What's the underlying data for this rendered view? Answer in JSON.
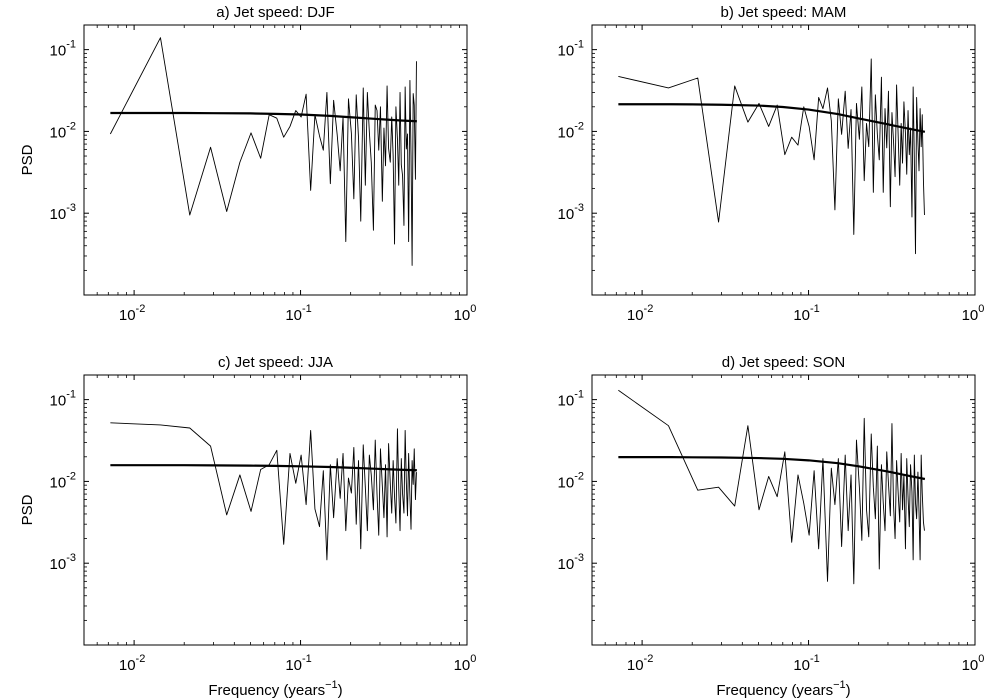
{
  "chart_data": [
    {
      "type": "line",
      "title": "a) Jet speed: DJF",
      "xlabel": "",
      "ylabel": "PSD",
      "xscale": "log",
      "yscale": "log",
      "xlim": [
        0.005,
        1
      ],
      "ylim": [
        0.0001,
        0.2
      ],
      "xticks": [
        {
          "base": "10",
          "exp": "-2",
          "value": 0.01
        },
        {
          "base": "10",
          "exp": "-1",
          "value": 0.1
        },
        {
          "base": "10",
          "exp": "0",
          "value": 1
        }
      ],
      "yticks": [
        {
          "base": "10",
          "exp": "-3",
          "value": 0.001
        },
        {
          "base": "10",
          "exp": "-2",
          "value": 0.01
        },
        {
          "base": "10",
          "exp": "-1",
          "value": 0.1
        }
      ],
      "series": [
        {
          "style": "thin",
          "x": [
            0.0072,
            0.0144,
            0.0216,
            0.0288,
            0.036,
            0.0432,
            0.0504,
            0.0576,
            0.0648,
            0.072,
            0.0792,
            0.0864,
            0.0936,
            0.1008,
            0.108,
            0.115,
            0.122,
            0.13,
            0.137,
            0.144,
            0.151,
            0.158,
            0.166,
            0.173,
            0.18,
            0.187,
            0.194,
            0.202,
            0.209,
            0.216,
            0.223,
            0.23,
            0.238,
            0.245,
            0.252,
            0.259,
            0.266,
            0.274,
            0.281,
            0.288,
            0.295,
            0.302,
            0.31,
            0.317,
            0.324,
            0.331,
            0.338,
            0.346,
            0.353,
            0.36,
            0.367,
            0.374,
            0.382,
            0.389,
            0.396,
            0.403,
            0.41,
            0.418,
            0.425,
            0.432,
            0.439,
            0.446,
            0.454,
            0.461,
            0.468,
            0.475,
            0.482,
            0.49,
            0.497
          ],
          "y": [
            0.0093,
            0.14,
            0.00095,
            0.0064,
            0.00105,
            0.0042,
            0.0096,
            0.0047,
            0.016,
            0.0145,
            0.0085,
            0.0115,
            0.018,
            0.015,
            0.0285,
            0.0019,
            0.016,
            0.0088,
            0.0059,
            0.03,
            0.0023,
            0.024,
            0.0091,
            0.0033,
            0.015,
            0.00045,
            0.025,
            0.0095,
            0.0015,
            0.028,
            0.0083,
            0.0008,
            0.034,
            0.0022,
            0.03,
            0.0098,
            0.0042,
            0.00062,
            0.021,
            0.018,
            0.0059,
            0.02,
            0.0014,
            0.011,
            0.0038,
            0.036,
            0.0062,
            0.0042,
            0.015,
            0.005,
            0.00042,
            0.02,
            0.0081,
            0.0022,
            0.03,
            0.0039,
            0.0029,
            0.00071,
            0.035,
            0.0061,
            0.0093,
            0.00045,
            0.042,
            0.0052,
            0.00023,
            0.029,
            0.021,
            0.0026,
            0.072
          ]
        },
        {
          "style": "thick",
          "x": [
            0.0072,
            0.01,
            0.015,
            0.02,
            0.03,
            0.05,
            0.07,
            0.1,
            0.15,
            0.2,
            0.3,
            0.4,
            0.5
          ],
          "y": [
            0.0168,
            0.0168,
            0.0168,
            0.0168,
            0.0167,
            0.0166,
            0.0164,
            0.0161,
            0.0155,
            0.0149,
            0.0141,
            0.0136,
            0.0133
          ]
        }
      ]
    },
    {
      "type": "line",
      "title": "b) Jet speed: MAM",
      "xlabel": "",
      "ylabel": "",
      "xscale": "log",
      "yscale": "log",
      "xlim": [
        0.005,
        1
      ],
      "ylim": [
        0.0001,
        0.2
      ],
      "xticks": [
        {
          "base": "10",
          "exp": "-2",
          "value": 0.01
        },
        {
          "base": "10",
          "exp": "-1",
          "value": 0.1
        },
        {
          "base": "10",
          "exp": "0",
          "value": 1
        }
      ],
      "yticks": [
        {
          "base": "10",
          "exp": "-3",
          "value": 0.001
        },
        {
          "base": "10",
          "exp": "-2",
          "value": 0.01
        },
        {
          "base": "10",
          "exp": "-1",
          "value": 0.1
        }
      ],
      "series": [
        {
          "style": "thin",
          "x": [
            0.0072,
            0.0144,
            0.0216,
            0.0288,
            0.036,
            0.0432,
            0.0504,
            0.0576,
            0.0648,
            0.072,
            0.0792,
            0.0864,
            0.0936,
            0.1008,
            0.108,
            0.115,
            0.122,
            0.13,
            0.137,
            0.144,
            0.151,
            0.158,
            0.166,
            0.173,
            0.18,
            0.187,
            0.194,
            0.202,
            0.209,
            0.216,
            0.223,
            0.23,
            0.238,
            0.245,
            0.252,
            0.259,
            0.266,
            0.274,
            0.281,
            0.288,
            0.295,
            0.302,
            0.31,
            0.317,
            0.324,
            0.331,
            0.338,
            0.346,
            0.353,
            0.36,
            0.367,
            0.374,
            0.382,
            0.389,
            0.396,
            0.403,
            0.41,
            0.418,
            0.425,
            0.432,
            0.439,
            0.446,
            0.454,
            0.461,
            0.468,
            0.475,
            0.482,
            0.49,
            0.497
          ],
          "y": [
            0.047,
            0.034,
            0.045,
            0.00078,
            0.036,
            0.013,
            0.022,
            0.0115,
            0.021,
            0.0052,
            0.0085,
            0.0068,
            0.02,
            0.0115,
            0.0045,
            0.026,
            0.019,
            0.034,
            0.0135,
            0.0011,
            0.025,
            0.0092,
            0.031,
            0.0062,
            0.0185,
            0.00055,
            0.022,
            0.008,
            0.035,
            0.0025,
            0.0125,
            0.0065,
            0.077,
            0.0018,
            0.028,
            0.0092,
            0.0045,
            0.046,
            0.0018,
            0.019,
            0.0063,
            0.031,
            0.0012,
            0.017,
            0.0075,
            0.0028,
            0.037,
            0.0081,
            0.0022,
            0.0125,
            0.0041,
            0.023,
            0.0095,
            0.003,
            0.018,
            0.0052,
            0.011,
            0.0009,
            0.035,
            0.0045,
            0.00032,
            0.026,
            0.0075,
            0.0033,
            0.019,
            0.0065,
            0.016,
            0.0025,
            0.00095
          ]
        },
        {
          "style": "thick",
          "x": [
            0.0072,
            0.01,
            0.015,
            0.02,
            0.03,
            0.05,
            0.07,
            0.1,
            0.15,
            0.2,
            0.3,
            0.4,
            0.5
          ],
          "y": [
            0.0215,
            0.0215,
            0.0215,
            0.0214,
            0.0212,
            0.0207,
            0.0199,
            0.0185,
            0.0163,
            0.0144,
            0.0122,
            0.0108,
            0.0099
          ]
        }
      ]
    },
    {
      "type": "line",
      "title": "c) Jet speed: JJA",
      "xlabel": "Frequency (years",
      "xlabel_sup": "−1",
      "xlabel_tail": ")",
      "ylabel": "PSD",
      "xscale": "log",
      "yscale": "log",
      "xlim": [
        0.005,
        1
      ],
      "ylim": [
        0.0001,
        0.2
      ],
      "xticks": [
        {
          "base": "10",
          "exp": "-2",
          "value": 0.01
        },
        {
          "base": "10",
          "exp": "-1",
          "value": 0.1
        },
        {
          "base": "10",
          "exp": "0",
          "value": 1
        }
      ],
      "yticks": [
        {
          "base": "10",
          "exp": "-3",
          "value": 0.001
        },
        {
          "base": "10",
          "exp": "-2",
          "value": 0.01
        },
        {
          "base": "10",
          "exp": "-1",
          "value": 0.1
        }
      ],
      "series": [
        {
          "style": "thin",
          "x": [
            0.0072,
            0.0144,
            0.0216,
            0.0288,
            0.036,
            0.0432,
            0.0504,
            0.0576,
            0.0648,
            0.072,
            0.0792,
            0.0864,
            0.0936,
            0.1008,
            0.108,
            0.115,
            0.122,
            0.13,
            0.137,
            0.144,
            0.151,
            0.158,
            0.166,
            0.173,
            0.18,
            0.187,
            0.194,
            0.202,
            0.209,
            0.216,
            0.223,
            0.23,
            0.238,
            0.245,
            0.252,
            0.259,
            0.266,
            0.274,
            0.281,
            0.288,
            0.295,
            0.302,
            0.31,
            0.317,
            0.324,
            0.331,
            0.338,
            0.346,
            0.353,
            0.36,
            0.367,
            0.374,
            0.382,
            0.389,
            0.396,
            0.403,
            0.41,
            0.418,
            0.425,
            0.432,
            0.439,
            0.446,
            0.454,
            0.461,
            0.468,
            0.475,
            0.482,
            0.49,
            0.497
          ],
          "y": [
            0.052,
            0.049,
            0.045,
            0.027,
            0.0039,
            0.012,
            0.0043,
            0.014,
            0.016,
            0.024,
            0.0017,
            0.022,
            0.0095,
            0.021,
            0.0052,
            0.042,
            0.0046,
            0.0028,
            0.0135,
            0.0011,
            0.016,
            0.0036,
            0.019,
            0.0062,
            0.022,
            0.0025,
            0.011,
            0.0072,
            0.026,
            0.003,
            0.018,
            0.0015,
            0.028,
            0.0085,
            0.0025,
            0.021,
            0.012,
            0.0045,
            0.032,
            0.007,
            0.0022,
            0.025,
            0.0088,
            0.0036,
            0.016,
            0.0021,
            0.029,
            0.0095,
            0.0041,
            0.018,
            0.0065,
            0.0031,
            0.044,
            0.0082,
            0.0025,
            0.019,
            0.0071,
            0.0041,
            0.042,
            0.0098,
            0.0038,
            0.022,
            0.0065,
            0.0026,
            0.018,
            0.0092,
            0.025,
            0.006,
            0.013
          ]
        },
        {
          "style": "thick",
          "x": [
            0.0072,
            0.01,
            0.015,
            0.02,
            0.03,
            0.05,
            0.07,
            0.1,
            0.15,
            0.2,
            0.3,
            0.4,
            0.5
          ],
          "y": [
            0.0158,
            0.0158,
            0.0158,
            0.0158,
            0.0157,
            0.0156,
            0.0155,
            0.0153,
            0.015,
            0.0147,
            0.0142,
            0.0139,
            0.0137
          ]
        }
      ]
    },
    {
      "type": "line",
      "title": "d) Jet speed: SON",
      "xlabel": "Frequency (years",
      "xlabel_sup": "−1",
      "xlabel_tail": ")",
      "ylabel": "",
      "xscale": "log",
      "yscale": "log",
      "xlim": [
        0.005,
        1
      ],
      "ylim": [
        0.0001,
        0.2
      ],
      "xticks": [
        {
          "base": "10",
          "exp": "-2",
          "value": 0.01
        },
        {
          "base": "10",
          "exp": "-1",
          "value": 0.1
        },
        {
          "base": "10",
          "exp": "0",
          "value": 1
        }
      ],
      "yticks": [
        {
          "base": "10",
          "exp": "-3",
          "value": 0.001
        },
        {
          "base": "10",
          "exp": "-2",
          "value": 0.01
        },
        {
          "base": "10",
          "exp": "-1",
          "value": 0.1
        }
      ],
      "series": [
        {
          "style": "thin",
          "x": [
            0.0072,
            0.0144,
            0.0216,
            0.0288,
            0.036,
            0.0432,
            0.0504,
            0.0576,
            0.0648,
            0.072,
            0.0792,
            0.0864,
            0.0936,
            0.1008,
            0.108,
            0.115,
            0.122,
            0.13,
            0.137,
            0.144,
            0.151,
            0.158,
            0.166,
            0.173,
            0.18,
            0.187,
            0.194,
            0.202,
            0.209,
            0.216,
            0.223,
            0.23,
            0.238,
            0.245,
            0.252,
            0.259,
            0.266,
            0.274,
            0.281,
            0.288,
            0.295,
            0.302,
            0.31,
            0.317,
            0.324,
            0.331,
            0.338,
            0.346,
            0.353,
            0.36,
            0.367,
            0.374,
            0.382,
            0.389,
            0.396,
            0.403,
            0.41,
            0.418,
            0.425,
            0.432,
            0.439,
            0.446,
            0.454,
            0.461,
            0.468,
            0.475,
            0.482,
            0.49,
            0.497
          ],
          "y": [
            0.13,
            0.048,
            0.0078,
            0.0085,
            0.005,
            0.048,
            0.0045,
            0.0115,
            0.0065,
            0.023,
            0.0018,
            0.012,
            0.0054,
            0.0022,
            0.0135,
            0.0015,
            0.019,
            0.0006,
            0.0145,
            0.0052,
            0.019,
            0.0016,
            0.021,
            0.0025,
            0.012,
            0.00056,
            0.032,
            0.0085,
            0.0019,
            0.059,
            0.0045,
            0.0021,
            0.038,
            0.0085,
            0.0035,
            0.027,
            0.00085,
            0.016,
            0.0055,
            0.0025,
            0.023,
            0.0095,
            0.0038,
            0.051,
            0.0052,
            0.002,
            0.018,
            0.0068,
            0.0032,
            0.022,
            0.0045,
            0.012,
            0.0015,
            0.019,
            0.0065,
            0.0028,
            0.016,
            0.0075,
            0.0011,
            0.021,
            0.0055,
            0.0035,
            0.013,
            0.0042,
            0.0011,
            0.021,
            0.0072,
            0.0032,
            0.0025
          ]
        },
        {
          "style": "thick",
          "x": [
            0.0072,
            0.01,
            0.015,
            0.02,
            0.03,
            0.05,
            0.07,
            0.1,
            0.15,
            0.2,
            0.3,
            0.4,
            0.5
          ],
          "y": [
            0.0198,
            0.0198,
            0.0198,
            0.0197,
            0.0196,
            0.0193,
            0.0189,
            0.0181,
            0.0167,
            0.0153,
            0.0132,
            0.0117,
            0.0107
          ]
        }
      ]
    }
  ]
}
